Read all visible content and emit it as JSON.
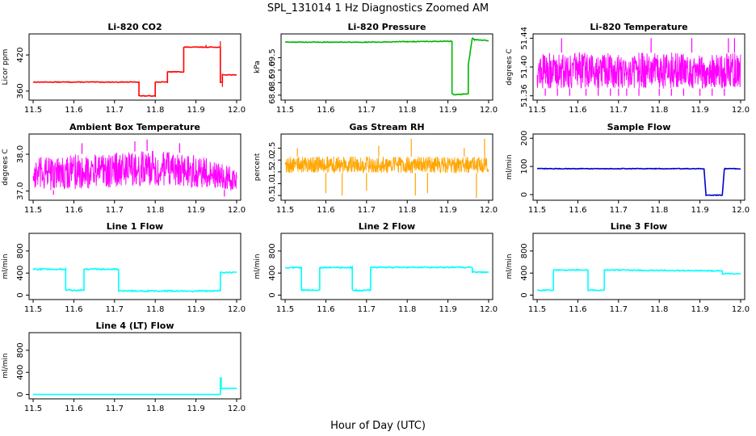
{
  "figure": {
    "title": "SPL_131014  1 Hz Diagnostics Zoomed AM",
    "xlabel": "Hour of Day (UTC)"
  },
  "chart_data": [
    {
      "type": "line",
      "title": "Li-820 CO2",
      "xlabel": "",
      "ylabel": "Licor ppm",
      "xlim": [
        11.49,
        12.01
      ],
      "ylim": [
        345,
        455
      ],
      "yticks": [
        360,
        420
      ],
      "ytick_labels": [
        "360",
        "420"
      ],
      "xticks": [
        11.5,
        11.6,
        11.7,
        11.8,
        11.9,
        12.0
      ],
      "xtick_labels": [
        "11.5",
        "11.6",
        "11.7",
        "11.8",
        "11.9",
        "12.0"
      ],
      "grid": false,
      "legend": "none",
      "series": [
        {
          "color": "#ff0000",
          "noise": 0.5,
          "x": [
            11.5,
            11.76,
            11.76,
            11.8,
            11.8,
            11.83,
            11.83,
            11.87,
            11.87,
            11.96,
            11.96,
            11.965,
            11.965,
            12.0
          ],
          "y": [
            375,
            375,
            352,
            352,
            375,
            375,
            392,
            392,
            433,
            433,
            375,
            375,
            387,
            387
          ]
        }
      ],
      "spikes": [
        {
          "x": 11.96,
          "y": 443
        },
        {
          "x": 11.965,
          "y": 367
        },
        {
          "x": 11.925,
          "y": 437
        }
      ]
    },
    {
      "type": "line",
      "title": "Li-820 Pressure",
      "xlabel": "",
      "ylabel": "kPa",
      "xlim": [
        11.49,
        12.01
      ],
      "ylim": [
        67.8,
        70.45
      ],
      "yticks": [
        68.0,
        68.5,
        69.0,
        69.5
      ],
      "ytick_labels": [
        "68.0",
        "68.5",
        "69.0",
        "69.5"
      ],
      "xticks": [
        11.5,
        11.6,
        11.7,
        11.8,
        11.9,
        12.0
      ],
      "xtick_labels": [
        "11.5",
        "11.6",
        "11.7",
        "11.8",
        "11.9",
        "12.0"
      ],
      "grid": false,
      "legend": "none",
      "series": [
        {
          "color": "#00b400",
          "noise": 0.015,
          "x": [
            11.5,
            11.7,
            11.8,
            11.91,
            11.91,
            11.915,
            11.95,
            11.95,
            11.96,
            11.965,
            12.0
          ],
          "y": [
            70.12,
            70.12,
            70.14,
            70.16,
            68.05,
            68.02,
            68.05,
            69.2,
            70.3,
            70.22,
            70.18
          ]
        }
      ],
      "spikes": []
    },
    {
      "type": "band",
      "title": "Li-820 Temperature",
      "xlabel": "",
      "ylabel": "degrees C",
      "xlim": [
        11.49,
        12.01
      ],
      "ylim": [
        51.354,
        51.446
      ],
      "yticks": [
        51.36,
        51.4,
        51.44
      ],
      "ytick_labels": [
        "51.36",
        "51.40",
        "51.44"
      ],
      "xticks": [
        11.5,
        11.6,
        11.7,
        11.8,
        11.9,
        12.0
      ],
      "xtick_labels": [
        "11.5",
        "11.6",
        "11.7",
        "11.8",
        "11.9",
        "12.0"
      ],
      "grid": false,
      "legend": "none",
      "series": [
        {
          "color": "#ff00ff",
          "x": [
            11.5,
            12.0
          ],
          "low": [
            51.37,
            51.37
          ],
          "high": [
            51.42,
            51.42
          ]
        }
      ],
      "spikes": [
        {
          "x": 11.56,
          "y": 51.44
        },
        {
          "x": 11.78,
          "y": 51.44
        },
        {
          "x": 11.88,
          "y": 51.44
        },
        {
          "x": 11.97,
          "y": 51.44
        },
        {
          "x": 11.985,
          "y": 51.44
        },
        {
          "x": 11.52,
          "y": 51.36
        },
        {
          "x": 11.55,
          "y": 51.36
        },
        {
          "x": 11.58,
          "y": 51.36
        },
        {
          "x": 11.62,
          "y": 51.36
        },
        {
          "x": 11.65,
          "y": 51.36
        },
        {
          "x": 11.68,
          "y": 51.36
        },
        {
          "x": 11.7,
          "y": 51.36
        },
        {
          "x": 11.72,
          "y": 51.36
        },
        {
          "x": 11.75,
          "y": 51.36
        },
        {
          "x": 11.8,
          "y": 51.36
        },
        {
          "x": 11.83,
          "y": 51.36
        },
        {
          "x": 11.86,
          "y": 51.36
        },
        {
          "x": 11.9,
          "y": 51.36
        },
        {
          "x": 11.93,
          "y": 51.36
        },
        {
          "x": 11.96,
          "y": 51.36
        }
      ]
    },
    {
      "type": "band",
      "title": "Ambient Box Temperature",
      "xlabel": "",
      "ylabel": "degrees C",
      "xlim": [
        11.49,
        12.01
      ],
      "ylim": [
        36.75,
        38.55
      ],
      "yticks": [
        37.0,
        38.0
      ],
      "ytick_labels": [
        "37.0",
        "38.0"
      ],
      "xticks": [
        11.5,
        11.6,
        11.7,
        11.8,
        11.9,
        12.0
      ],
      "xtick_labels": [
        "11.5",
        "11.6",
        "11.7",
        "11.8",
        "11.9",
        "12.0"
      ],
      "grid": false,
      "legend": "none",
      "series": [
        {
          "color": "#ff00ff",
          "x": [
            11.5,
            11.6,
            11.7,
            11.8,
            11.9,
            12.0
          ],
          "low": [
            37.0,
            37.05,
            37.1,
            37.15,
            37.1,
            37.0
          ],
          "high": [
            37.9,
            38.0,
            38.05,
            38.1,
            38.0,
            37.6
          ]
        }
      ],
      "spikes": [
        {
          "x": 11.62,
          "y": 38.3
        },
        {
          "x": 11.75,
          "y": 38.35
        },
        {
          "x": 11.78,
          "y": 38.4
        },
        {
          "x": 11.86,
          "y": 38.3
        },
        {
          "x": 11.55,
          "y": 36.9
        },
        {
          "x": 11.97,
          "y": 36.85
        }
      ]
    },
    {
      "type": "band",
      "title": "Gas Stream RH",
      "xlabel": "",
      "ylabel": "percent",
      "xlim": [
        11.49,
        12.01
      ],
      "ylim": [
        0.3,
        3.1
      ],
      "yticks": [
        0.5,
        1.0,
        1.5,
        2.0,
        2.5
      ],
      "ytick_labels": [
        "0.5",
        "1.0",
        "1.5",
        "2.0",
        "2.5"
      ],
      "xticks": [
        11.5,
        11.6,
        11.7,
        11.8,
        11.9,
        12.0
      ],
      "xtick_labels": [
        "11.5",
        "11.6",
        "11.7",
        "11.8",
        "11.9",
        "12.0"
      ],
      "grid": false,
      "legend": "none",
      "series": [
        {
          "color": "#ffa500",
          "x": [
            11.5,
            12.0
          ],
          "low": [
            1.45,
            1.45
          ],
          "high": [
            2.15,
            2.15
          ]
        }
      ],
      "spikes": [
        {
          "x": 11.6,
          "y": 0.6
        },
        {
          "x": 11.64,
          "y": 0.5
        },
        {
          "x": 11.7,
          "y": 0.7
        },
        {
          "x": 11.82,
          "y": 0.5
        },
        {
          "x": 11.85,
          "y": 0.6
        },
        {
          "x": 11.97,
          "y": 0.4
        },
        {
          "x": 11.53,
          "y": 2.5
        },
        {
          "x": 11.73,
          "y": 2.6
        },
        {
          "x": 11.81,
          "y": 2.9
        },
        {
          "x": 11.94,
          "y": 2.5
        },
        {
          "x": 11.99,
          "y": 2.9
        }
      ]
    },
    {
      "type": "line",
      "title": "Sample Flow",
      "xlabel": "",
      "ylabel": "ml/min",
      "xlim": [
        11.49,
        12.01
      ],
      "ylim": [
        -20,
        215
      ],
      "yticks": [
        0,
        100,
        200
      ],
      "ytick_labels": [
        "0",
        "100",
        "200"
      ],
      "xticks": [
        11.5,
        11.6,
        11.7,
        11.8,
        11.9,
        12.0
      ],
      "xtick_labels": [
        "11.5",
        "11.6",
        "11.7",
        "11.8",
        "11.9",
        "12.0"
      ],
      "grid": false,
      "legend": "none",
      "series": [
        {
          "color": "#0000cd",
          "noise": 1.2,
          "x": [
            11.5,
            11.91,
            11.915,
            11.955,
            11.96,
            12.0
          ],
          "y": [
            92,
            92,
            -2,
            -2,
            92,
            92
          ]
        }
      ],
      "spikes": []
    },
    {
      "type": "line",
      "title": "Line 1 Flow",
      "xlabel": "",
      "ylabel": "ml/min",
      "xlim": [
        11.49,
        12.01
      ],
      "ylim": [
        -80,
        1120
      ],
      "yticks": [
        0,
        400,
        800
      ],
      "ytick_labels": [
        "0",
        "400",
        "800"
      ],
      "xticks": [
        11.5,
        11.6,
        11.7,
        11.8,
        11.9,
        12.0
      ],
      "xtick_labels": [
        "11.5",
        "11.6",
        "11.7",
        "11.8",
        "11.9",
        "12.0"
      ],
      "grid": false,
      "legend": "none",
      "series": [
        {
          "color": "#00ffff",
          "noise": 12,
          "x": [
            11.5,
            11.58,
            11.58,
            11.625,
            11.625,
            11.71,
            11.71,
            11.96,
            11.96,
            12.0
          ],
          "y": [
            470,
            470,
            90,
            90,
            470,
            470,
            75,
            75,
            410,
            410
          ]
        }
      ],
      "spikes": []
    },
    {
      "type": "line",
      "title": "Line 2 Flow",
      "xlabel": "",
      "ylabel": "ml/min",
      "xlim": [
        11.49,
        12.01
      ],
      "ylim": [
        -80,
        1120
      ],
      "yticks": [
        0,
        400,
        800
      ],
      "ytick_labels": [
        "0",
        "400",
        "800"
      ],
      "xticks": [
        11.5,
        11.6,
        11.7,
        11.8,
        11.9,
        12.0
      ],
      "xtick_labels": [
        "11.5",
        "11.6",
        "11.7",
        "11.8",
        "11.9",
        "12.0"
      ],
      "grid": false,
      "legend": "none",
      "series": [
        {
          "color": "#00ffff",
          "noise": 12,
          "x": [
            11.5,
            11.54,
            11.54,
            11.585,
            11.585,
            11.665,
            11.665,
            11.71,
            11.71,
            11.96,
            11.96,
            12.0
          ],
          "y": [
            500,
            500,
            90,
            90,
            500,
            500,
            90,
            90,
            505,
            505,
            420,
            420
          ]
        }
      ],
      "spikes": []
    },
    {
      "type": "line",
      "title": "Line 3 Flow",
      "xlabel": "",
      "ylabel": "ml/min",
      "xlim": [
        11.49,
        12.01
      ],
      "ylim": [
        -80,
        1120
      ],
      "yticks": [
        0,
        400,
        800
      ],
      "ytick_labels": [
        "0",
        "400",
        "800"
      ],
      "xticks": [
        11.5,
        11.6,
        11.7,
        11.8,
        11.9,
        12.0
      ],
      "xtick_labels": [
        "11.5",
        "11.6",
        "11.7",
        "11.8",
        "11.9",
        "12.0"
      ],
      "grid": false,
      "legend": "none",
      "series": [
        {
          "color": "#00ffff",
          "noise": 10,
          "x": [
            11.5,
            11.54,
            11.54,
            11.625,
            11.625,
            11.665,
            11.665,
            11.955,
            11.955,
            12.0
          ],
          "y": [
            90,
            90,
            455,
            455,
            90,
            90,
            455,
            440,
            390,
            390
          ]
        }
      ],
      "spikes": []
    },
    {
      "type": "line",
      "title": "Line 4 (LT) Flow",
      "xlabel": "",
      "ylabel": "ml/min",
      "xlim": [
        11.49,
        12.01
      ],
      "ylim": [
        -80,
        1120
      ],
      "yticks": [
        0,
        400,
        800
      ],
      "ytick_labels": [
        "0",
        "400",
        "800"
      ],
      "xticks": [
        11.5,
        11.6,
        11.7,
        11.8,
        11.9,
        12.0
      ],
      "xtick_labels": [
        "11.5",
        "11.6",
        "11.7",
        "11.8",
        "11.9",
        "12.0"
      ],
      "grid": false,
      "legend": "none",
      "series": [
        {
          "color": "#00ffff",
          "noise": 0,
          "x": [
            11.5,
            11.96,
            11.96,
            11.962,
            11.962,
            12.0
          ],
          "y": [
            0,
            0,
            300,
            300,
            110,
            110
          ]
        }
      ],
      "spikes": []
    }
  ]
}
